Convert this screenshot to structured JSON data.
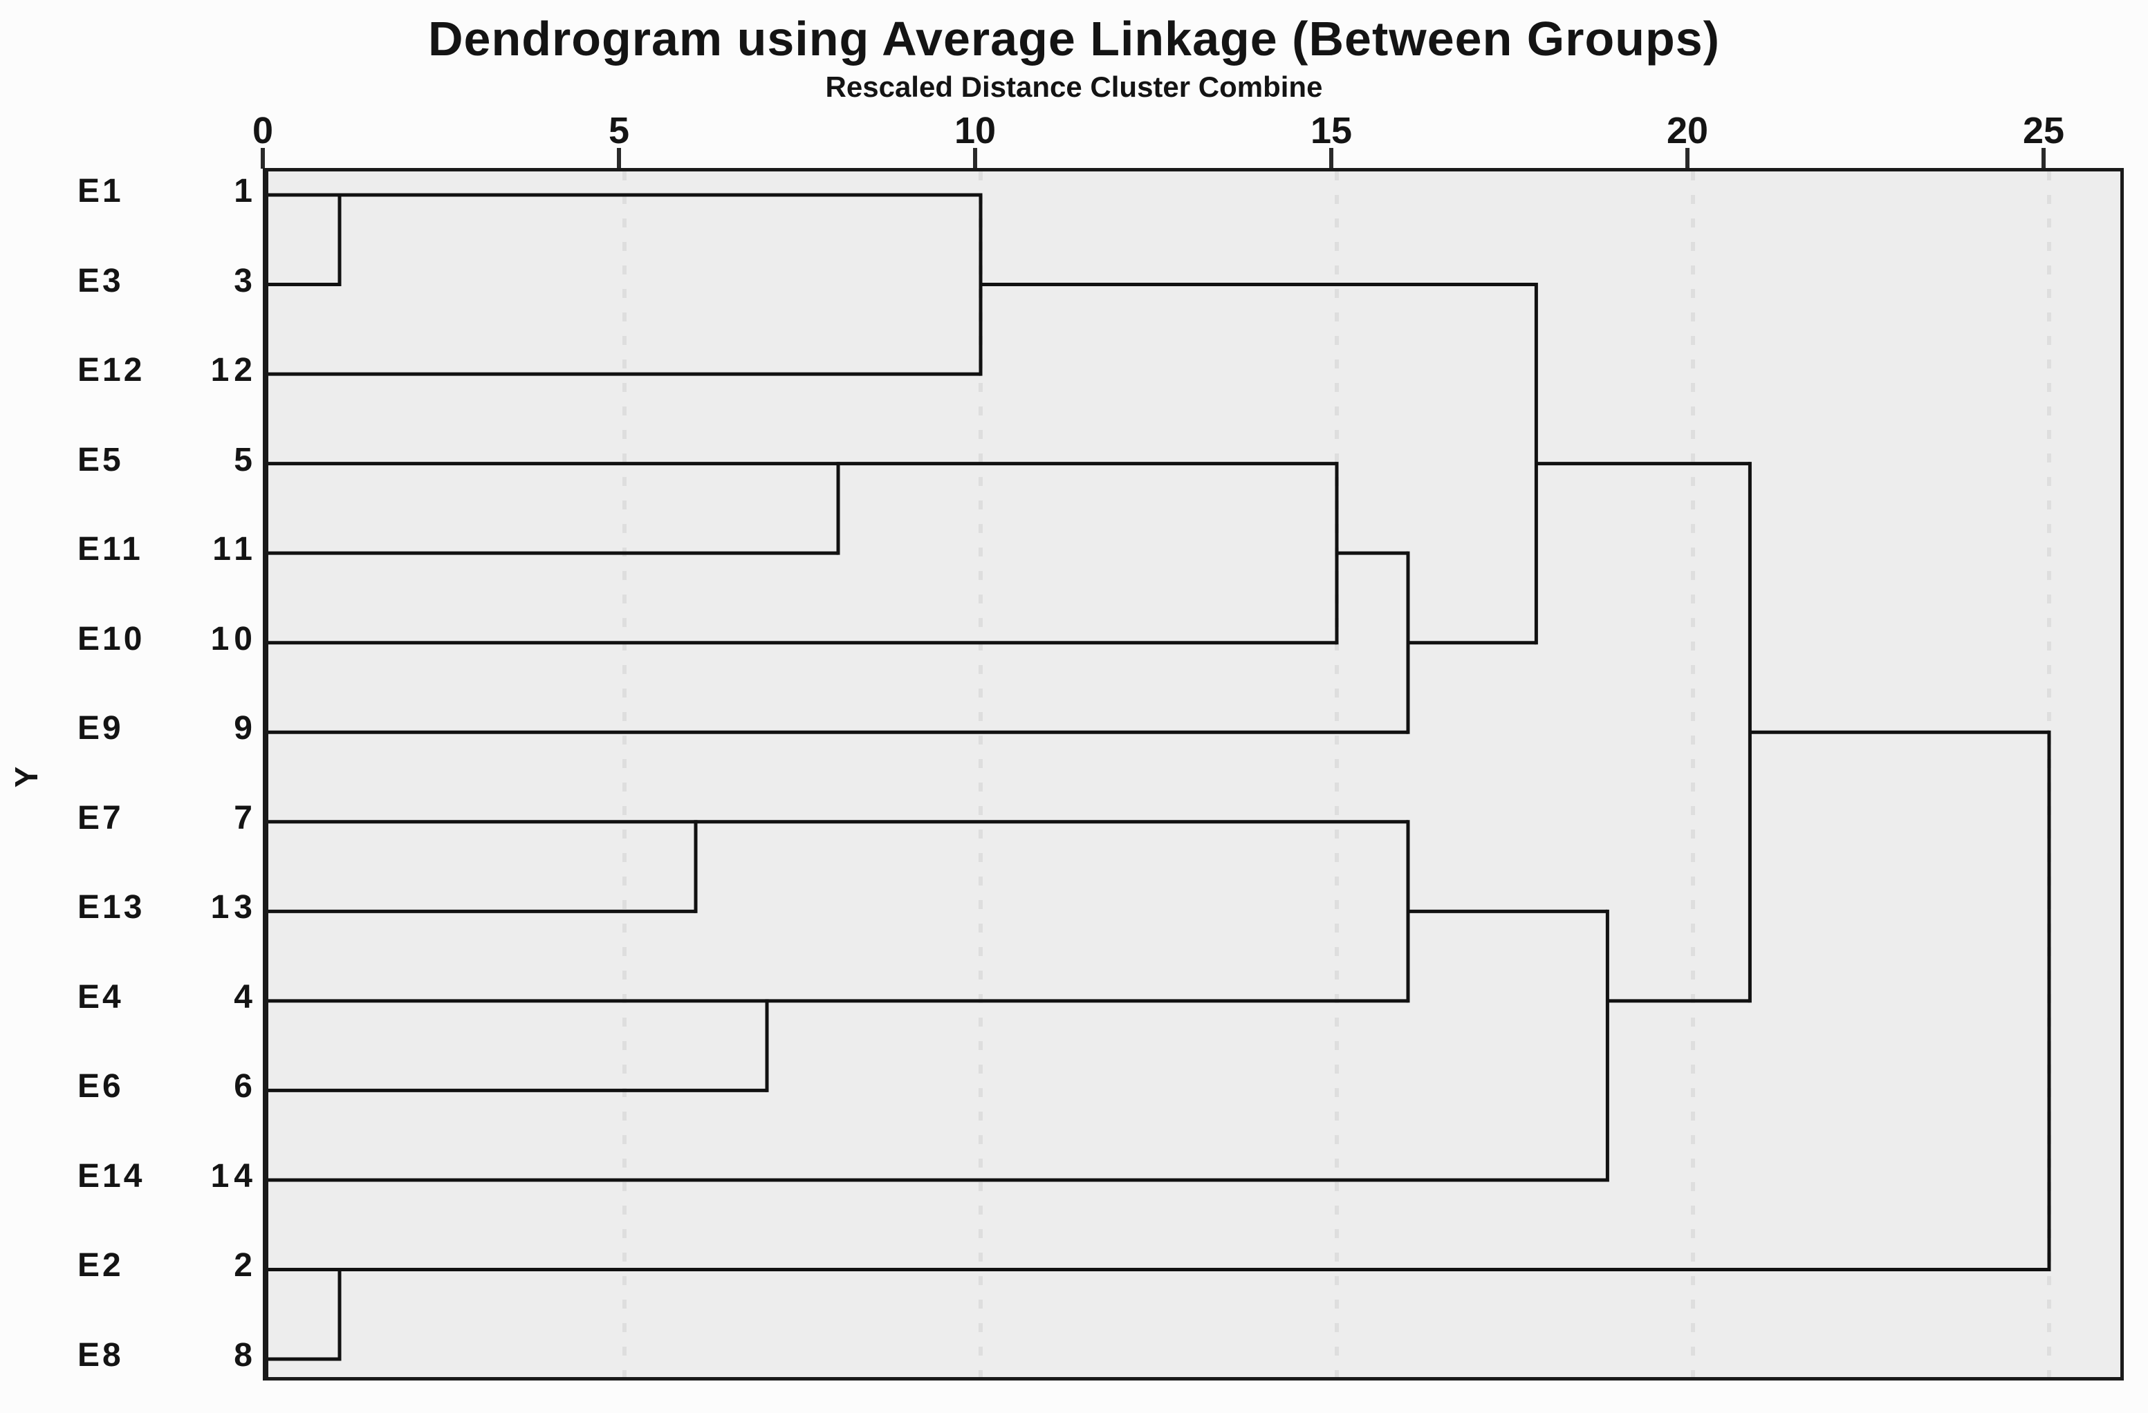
{
  "title": "Dendrogram using Average Linkage (Between Groups)",
  "subtitle": "Rescaled Distance Cluster Combine",
  "y_axis_label": "Y",
  "colors": {
    "page_bg": "#fcfcfc",
    "plot_bg": "#ededed",
    "line": "#111111",
    "grid": "#dedede",
    "text": "#141414",
    "tick": "#2a2a2a"
  },
  "chart_data": {
    "type": "dendrogram",
    "orientation": "horizontal",
    "title": "Dendrogram using Average Linkage (Between Groups)",
    "subtitle": "Rescaled Distance Cluster Combine",
    "xlabel": "Rescaled Distance Cluster Combine",
    "ylabel": "Y",
    "xlim": [
      0,
      26.1
    ],
    "x_ticks": [
      0,
      5,
      10,
      15,
      20,
      25
    ],
    "grid": "dashed-vertical",
    "leaves": [
      {
        "label": "E1",
        "case_num": "1"
      },
      {
        "label": "E3",
        "case_num": "3"
      },
      {
        "label": "E12",
        "case_num": "12"
      },
      {
        "label": "E5",
        "case_num": "5"
      },
      {
        "label": "E11",
        "case_num": "11"
      },
      {
        "label": "E10",
        "case_num": "10"
      },
      {
        "label": "E9",
        "case_num": "9"
      },
      {
        "label": "E7",
        "case_num": "7"
      },
      {
        "label": "E13",
        "case_num": "13"
      },
      {
        "label": "E4",
        "case_num": "4"
      },
      {
        "label": "E6",
        "case_num": "6"
      },
      {
        "label": "E14",
        "case_num": "14"
      },
      {
        "label": "E2",
        "case_num": "2"
      },
      {
        "label": "E8",
        "case_num": "8"
      }
    ],
    "merges": [
      {
        "members": [
          "E1",
          "E3"
        ],
        "distance": 1
      },
      {
        "members": [
          "E2",
          "E8"
        ],
        "distance": 1
      },
      {
        "members": [
          "E7",
          "E13"
        ],
        "distance": 6
      },
      {
        "members": [
          "E4",
          "E6"
        ],
        "distance": 7
      },
      {
        "members": [
          "E5",
          "E11"
        ],
        "distance": 8
      },
      {
        "members": [
          "E1+E3",
          "E12"
        ],
        "distance": 10
      },
      {
        "members": [
          "E5+E11",
          "E10"
        ],
        "distance": 15
      },
      {
        "members": [
          "E5+E11+E10",
          "E9"
        ],
        "distance": 16
      },
      {
        "members": [
          "E7+E13",
          "E4+E6"
        ],
        "distance": 16
      },
      {
        "members": [
          "E1+E3+E12",
          "E5+E11+E10+E9"
        ],
        "distance": 17.8
      },
      {
        "members": [
          "E7+E13+E4+E6",
          "E14"
        ],
        "distance": 18.8
      },
      {
        "members": [
          "E1+E3+E12+E5+E11+E10+E9",
          "E7+E13+E4+E6+E14"
        ],
        "distance": 20.8
      },
      {
        "members": [
          "all-above",
          "E2+E8"
        ],
        "distance": 25
      }
    ],
    "segments": {
      "horizontal": [
        [
          1,
          0,
          1
        ],
        [
          2,
          0,
          1
        ],
        [
          1,
          1,
          10
        ],
        [
          3,
          0,
          10
        ],
        [
          2,
          10,
          17.8
        ],
        [
          4,
          0,
          8
        ],
        [
          5,
          0,
          8
        ],
        [
          4,
          8,
          15
        ],
        [
          6,
          0,
          15
        ],
        [
          5,
          15,
          16
        ],
        [
          7,
          0,
          16
        ],
        [
          6,
          16,
          17.8
        ],
        [
          4,
          17.8,
          20.8
        ],
        [
          8,
          0,
          6
        ],
        [
          9,
          0,
          6
        ],
        [
          8,
          6,
          16
        ],
        [
          10,
          0,
          7
        ],
        [
          11,
          0,
          7
        ],
        [
          10,
          7,
          16
        ],
        [
          9,
          16,
          18.8
        ],
        [
          12,
          0,
          18.8
        ],
        [
          10,
          18.8,
          20.8
        ],
        [
          7,
          20.8,
          25
        ],
        [
          13,
          0,
          1
        ],
        [
          14,
          0,
          1
        ],
        [
          13,
          1,
          25
        ]
      ],
      "vertical": [
        [
          1,
          1,
          2
        ],
        [
          10,
          1,
          3
        ],
        [
          8,
          4,
          5
        ],
        [
          15,
          4,
          6
        ],
        [
          16,
          5,
          7
        ],
        [
          17.8,
          2,
          6
        ],
        [
          6,
          8,
          9
        ],
        [
          7,
          10,
          11
        ],
        [
          16,
          8,
          10
        ],
        [
          18.8,
          9,
          12
        ],
        [
          20.8,
          4,
          10
        ],
        [
          1,
          13,
          14
        ],
        [
          25,
          7,
          13
        ]
      ]
    }
  }
}
